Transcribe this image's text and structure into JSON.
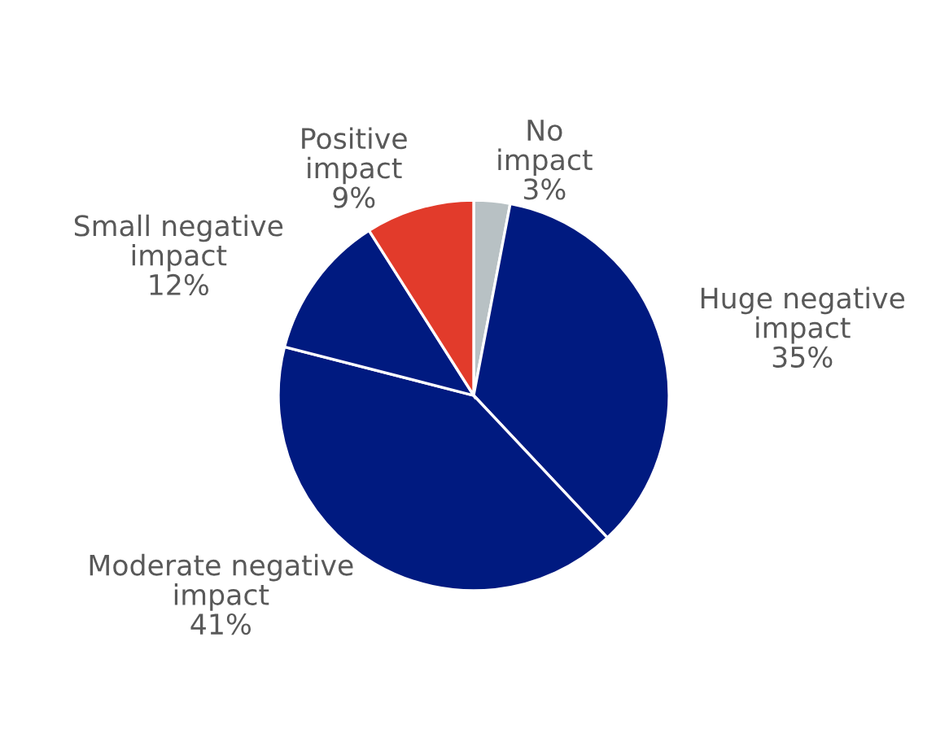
{
  "chart_data": {
    "type": "pie",
    "categories": [
      "No\nimpact",
      "Huge negative\nimpact",
      "Moderate negative\nimpact",
      "Small negative\nimpact",
      "Positive\nimpact"
    ],
    "values": [
      3,
      35,
      41,
      12,
      9
    ],
    "colors": [
      "#b8c1c4",
      "#001a80",
      "#001a80",
      "#001a80",
      "#e23b2b"
    ],
    "value_labels": [
      "3%",
      "35%",
      "41%",
      "12%",
      "9%"
    ],
    "legend": false
  }
}
